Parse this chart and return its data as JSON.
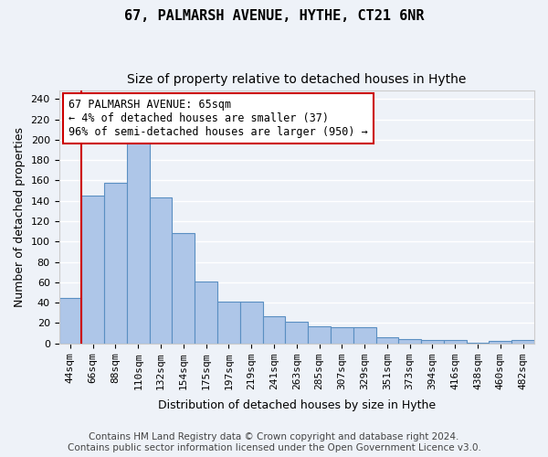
{
  "title_line1": "67, PALMARSH AVENUE, HYTHE, CT21 6NR",
  "title_line2": "Size of property relative to detached houses in Hythe",
  "xlabel": "Distribution of detached houses by size in Hythe",
  "ylabel": "Number of detached properties",
  "bar_labels": [
    "44sqm",
    "66sqm",
    "88sqm",
    "110sqm",
    "132sqm",
    "154sqm",
    "175sqm",
    "197sqm",
    "219sqm",
    "241sqm",
    "263sqm",
    "285sqm",
    "307sqm",
    "329sqm",
    "351sqm",
    "373sqm",
    "394sqm",
    "416sqm",
    "438sqm",
    "460sqm",
    "482sqm"
  ],
  "bar_values": [
    45,
    145,
    158,
    202,
    143,
    108,
    61,
    41,
    41,
    27,
    21,
    17,
    16,
    16,
    6,
    4,
    3,
    3,
    1,
    2,
    3
  ],
  "bar_color": "#aec6e8",
  "bar_edgecolor": "#5a8fc2",
  "annotation_line1": "67 PALMARSH AVENUE: 65sqm",
  "annotation_line2": "← 4% of detached houses are smaller (37)",
  "annotation_line3": "96% of semi-detached houses are larger (950) →",
  "vline_x": 0.5,
  "vline_color": "#cc0000",
  "annotation_box_edgecolor": "#cc0000",
  "ylim": [
    0,
    248
  ],
  "yticks": [
    0,
    20,
    40,
    60,
    80,
    100,
    120,
    140,
    160,
    180,
    200,
    220,
    240
  ],
  "footer_line1": "Contains HM Land Registry data © Crown copyright and database right 2024.",
  "footer_line2": "Contains public sector information licensed under the Open Government Licence v3.0.",
  "background_color": "#eef2f8",
  "plot_background": "#eef2f8",
  "grid_color": "#ffffff",
  "title_fontsize": 11,
  "subtitle_fontsize": 10,
  "axis_label_fontsize": 9,
  "tick_fontsize": 8,
  "annotation_fontsize": 8.5,
  "footer_fontsize": 7.5
}
